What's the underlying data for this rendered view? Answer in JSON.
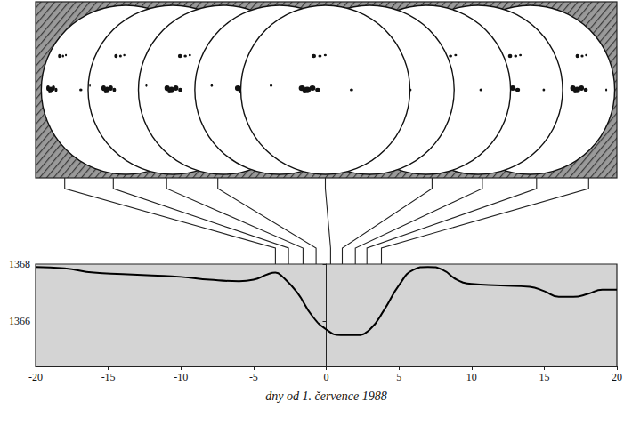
{
  "chart_data": {
    "type": "line",
    "x_label": "dny od 1. července 1988",
    "x": [
      -20,
      -18,
      -16,
      -14,
      -12,
      -10,
      -8,
      -6,
      -5,
      -4,
      -3.5,
      -3,
      -2,
      -1,
      0,
      1,
      2,
      3,
      4,
      5,
      6,
      7,
      8,
      9,
      10,
      12,
      14,
      15,
      16,
      17,
      18,
      19,
      20
    ],
    "values": [
      1367.9,
      1367.85,
      1367.7,
      1367.65,
      1367.6,
      1367.55,
      1367.45,
      1367.4,
      1367.45,
      1367.65,
      1367.7,
      1367.55,
      1367.0,
      1366.2,
      1365.7,
      1365.5,
      1365.5,
      1365.7,
      1366.4,
      1367.25,
      1367.8,
      1367.9,
      1367.8,
      1367.45,
      1367.3,
      1367.25,
      1367.2,
      1367.05,
      1366.85,
      1366.85,
      1366.95,
      1367.1,
      1367.1
    ],
    "color": "#000000",
    "xlim": [
      -20,
      20
    ],
    "xticks": [
      -20,
      -15,
      -10,
      -5,
      0,
      5,
      10,
      15,
      20
    ],
    "ylim": [
      1364.4,
      1368
    ],
    "yticks": [
      1366,
      1368
    ],
    "grid": false,
    "snapshot_days": [
      -3.5,
      -2.6,
      -1.6,
      -0.7,
      0.3,
      1.1,
      2.0,
      2.8,
      3.8
    ]
  }
}
